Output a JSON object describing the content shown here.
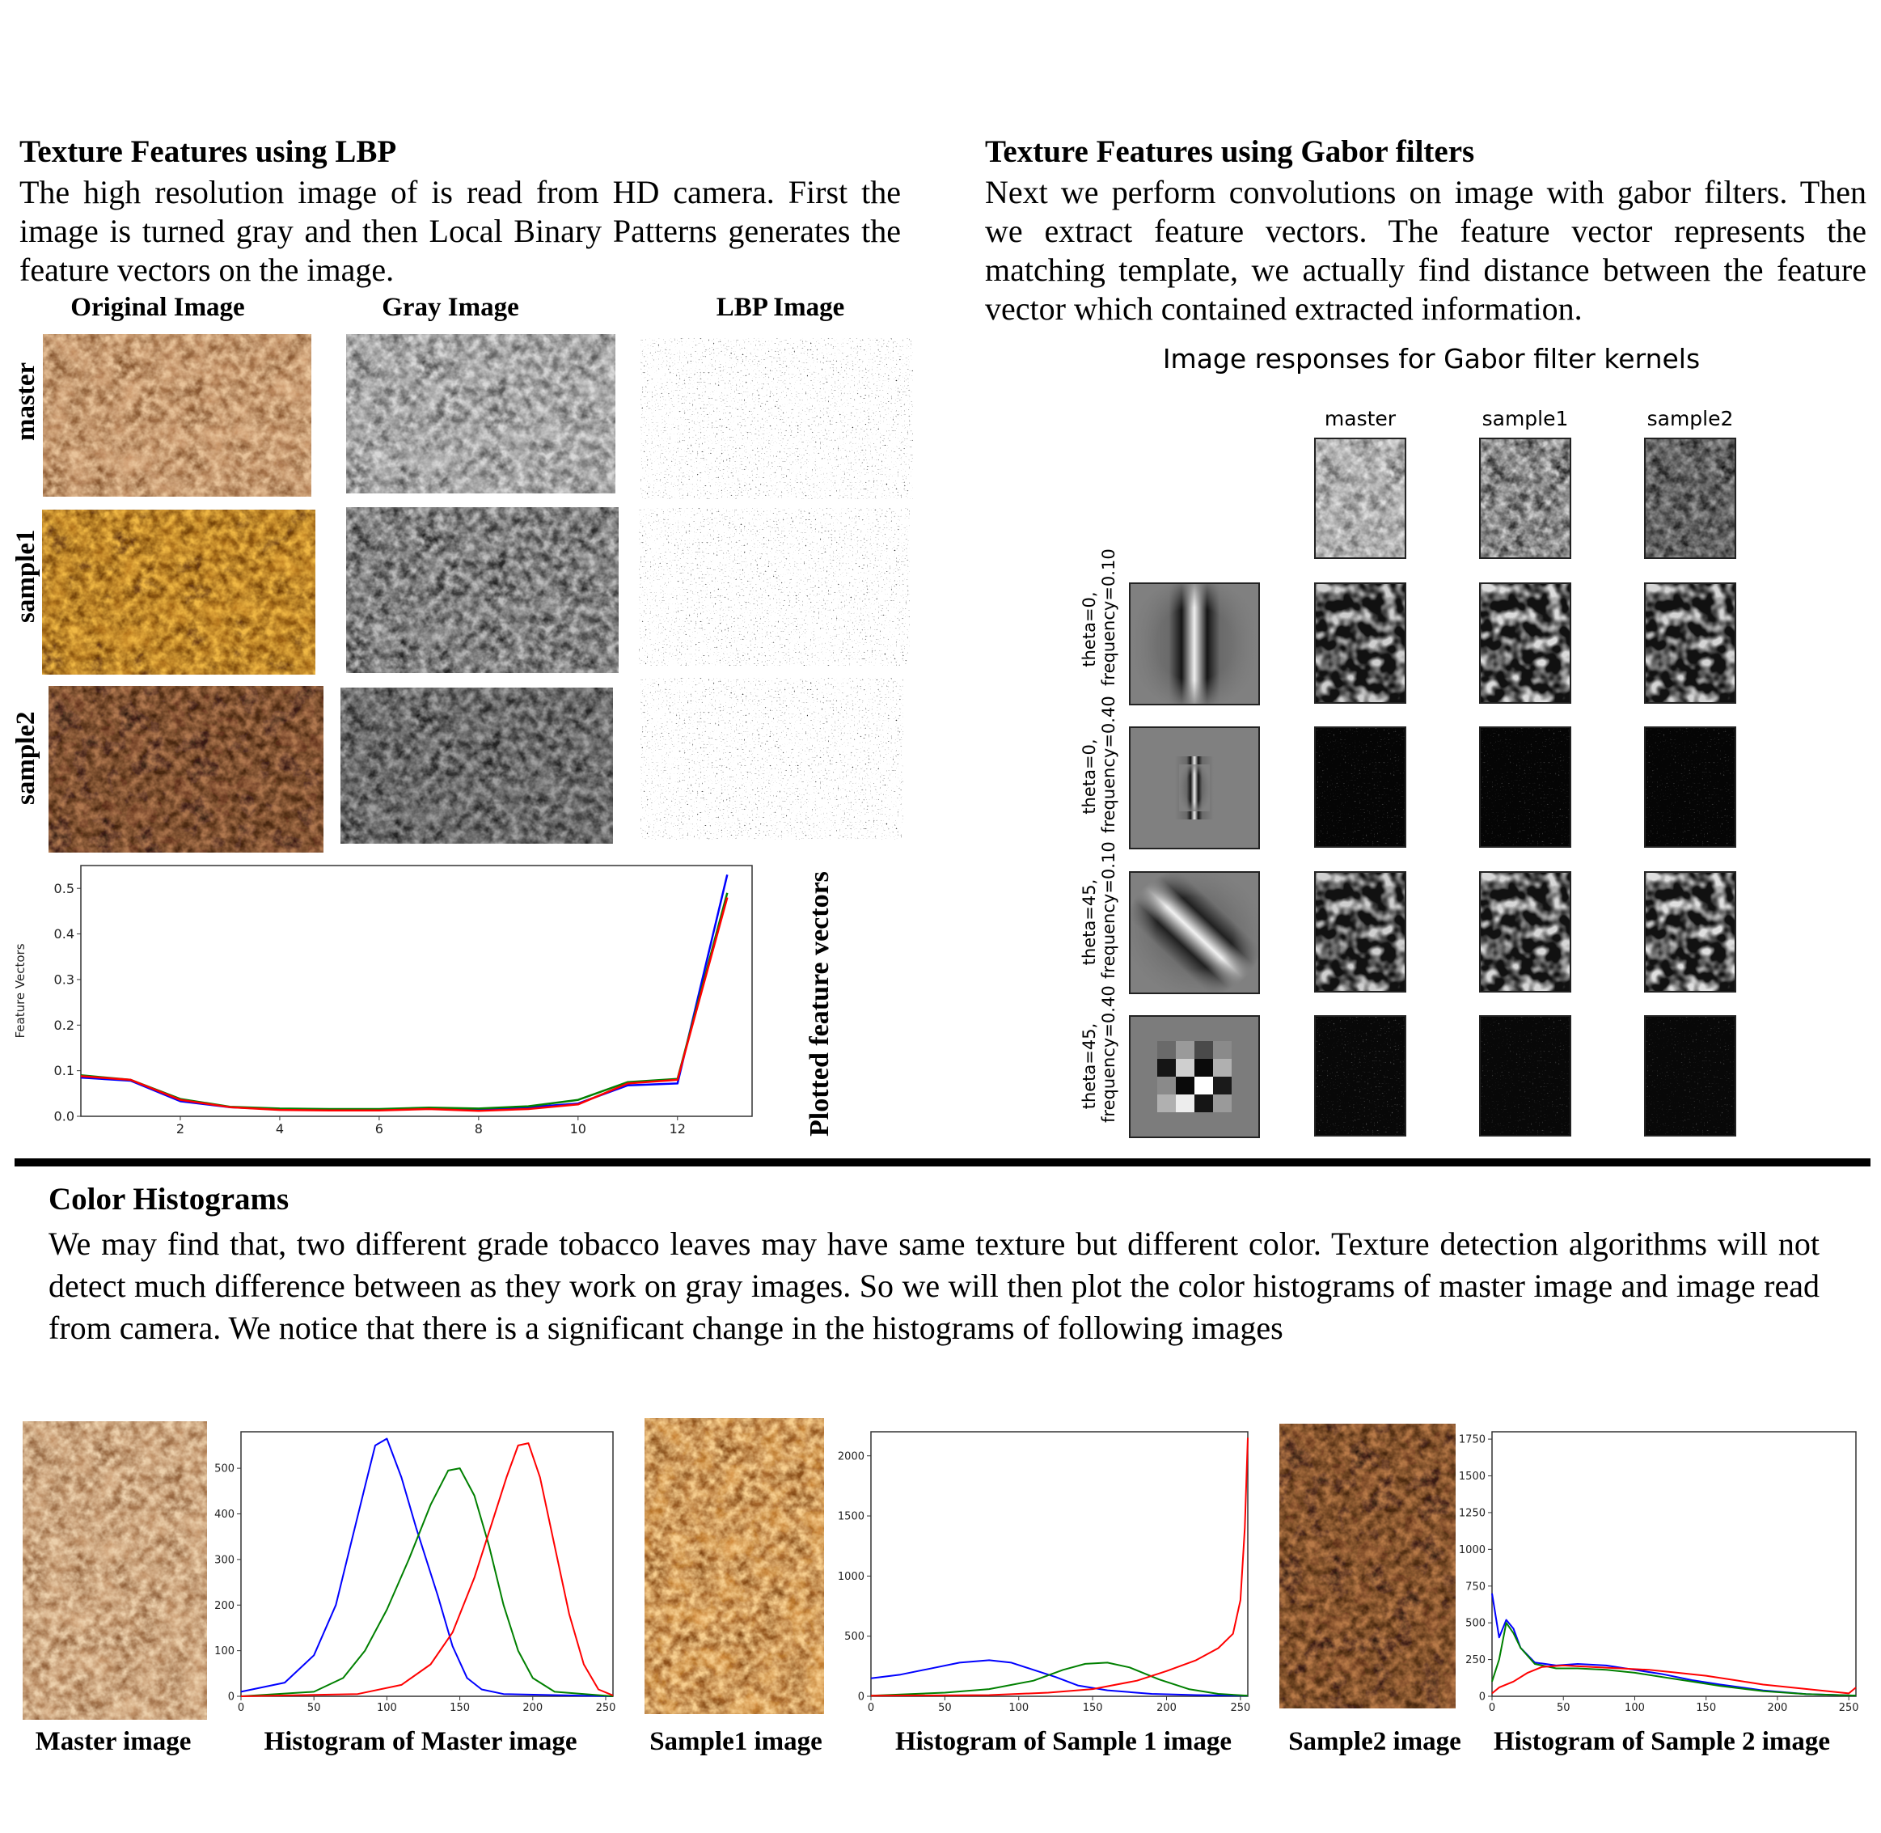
{
  "lbp_section": {
    "title": "Texture Features using LBP",
    "text": "The high resolution image of is read from HD camera. First the image is turned gray and then Local Binary Patterns generates the feature vectors on the image.",
    "columns": [
      "Original Image",
      "Gray Image",
      "LBP Image"
    ],
    "rows": [
      "master",
      "sample1",
      "sample2"
    ],
    "plot_caption": "Plotted feature vectors"
  },
  "gabor_section": {
    "title": "Texture Features using Gabor filters",
    "text": "Next we perform convolutions on image with gabor filters. Then we extract feature vectors. The feature vector represents the matching template, we actually find distance between the feature vector which contained extracted information.",
    "figure_title": "Image responses for Gabor filter kernels",
    "columns": [
      "master",
      "sample1",
      "sample2"
    ],
    "rows": [
      {
        "l1": "theta=0,",
        "l2": "frequency=0.10"
      },
      {
        "l1": "theta=0,",
        "l2": "frequency=0.40"
      },
      {
        "l1": "theta=45,",
        "l2": "frequency=0.10"
      },
      {
        "l1": "theta=45,",
        "l2": "frequency=0.40"
      }
    ]
  },
  "color_section": {
    "title": "Color Histograms",
    "text": "We may find that, two different grade tobacco leaves may have same texture but different color. Texture detection algorithms will not detect much difference between as they work on gray images. So we will then plot the color histograms of master image and image read from camera. We notice that there is a significant change in the histograms of following images",
    "captions": [
      "Master image",
      "Histogram of Master image",
      "Sample1 image",
      "Histogram of Sample 1 image",
      "Sample2 image",
      "Histogram of Sample 2 image"
    ]
  },
  "colors": {
    "blue": "#0000ff",
    "green": "#008000",
    "red": "#ff0000"
  },
  "chart_data": [
    {
      "type": "line",
      "ylabel": "Feature Vectors",
      "xlim": [
        0,
        13.5
      ],
      "ylim": [
        0,
        0.55
      ],
      "xticks": [
        2,
        4,
        6,
        8,
        10,
        12
      ],
      "yticks": [
        0.0,
        0.1,
        0.2,
        0.3,
        0.4,
        0.5
      ],
      "x": [
        0,
        1,
        2,
        3,
        4,
        5,
        6,
        7,
        8,
        9,
        10,
        11,
        12,
        13
      ],
      "series": [
        {
          "color": "blue",
          "values": [
            0.085,
            0.078,
            0.033,
            0.02,
            0.015,
            0.015,
            0.014,
            0.018,
            0.015,
            0.02,
            0.028,
            0.068,
            0.072,
            0.53
          ]
        },
        {
          "color": "green",
          "values": [
            0.09,
            0.08,
            0.038,
            0.021,
            0.017,
            0.016,
            0.016,
            0.019,
            0.017,
            0.022,
            0.036,
            0.075,
            0.082,
            0.49
          ]
        },
        {
          "color": "red",
          "values": [
            0.088,
            0.08,
            0.036,
            0.02,
            0.014,
            0.013,
            0.013,
            0.016,
            0.012,
            0.016,
            0.026,
            0.072,
            0.08,
            0.48
          ]
        }
      ]
    },
    {
      "type": "line",
      "title": "Histogram of Master image",
      "xlim": [
        0,
        255
      ],
      "ylim": [
        0,
        580
      ],
      "xticks": [
        0,
        50,
        100,
        150,
        200,
        250
      ],
      "yticks": [
        0,
        100,
        200,
        300,
        400,
        500
      ],
      "series": [
        {
          "color": "blue",
          "points": [
            [
              0,
              10
            ],
            [
              30,
              30
            ],
            [
              50,
              90
            ],
            [
              65,
              200
            ],
            [
              75,
              330
            ],
            [
              85,
              460
            ],
            [
              92,
              550
            ],
            [
              100,
              565
            ],
            [
              110,
              480
            ],
            [
              120,
              370
            ],
            [
              135,
              220
            ],
            [
              145,
              110
            ],
            [
              155,
              40
            ],
            [
              165,
              15
            ],
            [
              180,
              5
            ],
            [
              255,
              0
            ]
          ]
        },
        {
          "color": "green",
          "points": [
            [
              0,
              0
            ],
            [
              50,
              10
            ],
            [
              70,
              40
            ],
            [
              85,
              100
            ],
            [
              100,
              190
            ],
            [
              115,
              300
            ],
            [
              130,
              420
            ],
            [
              142,
              495
            ],
            [
              150,
              500
            ],
            [
              160,
              440
            ],
            [
              170,
              330
            ],
            [
              180,
              200
            ],
            [
              190,
              100
            ],
            [
              200,
              40
            ],
            [
              215,
              10
            ],
            [
              255,
              0
            ]
          ]
        },
        {
          "color": "red",
          "points": [
            [
              0,
              0
            ],
            [
              80,
              5
            ],
            [
              110,
              25
            ],
            [
              130,
              70
            ],
            [
              145,
              140
            ],
            [
              160,
              260
            ],
            [
              172,
              380
            ],
            [
              182,
              480
            ],
            [
              190,
              550
            ],
            [
              197,
              555
            ],
            [
              205,
              480
            ],
            [
              215,
              330
            ],
            [
              225,
              180
            ],
            [
              235,
              70
            ],
            [
              245,
              15
            ],
            [
              255,
              2
            ]
          ]
        }
      ]
    },
    {
      "type": "line",
      "title": "Histogram of Sample 1 image",
      "xlim": [
        0,
        255
      ],
      "ylim": [
        0,
        2200
      ],
      "xticks": [
        0,
        50,
        100,
        150,
        200,
        250
      ],
      "yticks": [
        0,
        500,
        1000,
        1500,
        2000
      ],
      "series": [
        {
          "color": "blue",
          "points": [
            [
              0,
              150
            ],
            [
              20,
              180
            ],
            [
              40,
              230
            ],
            [
              60,
              280
            ],
            [
              80,
              300
            ],
            [
              95,
              280
            ],
            [
              110,
              220
            ],
            [
              125,
              160
            ],
            [
              140,
              90
            ],
            [
              160,
              50
            ],
            [
              190,
              20
            ],
            [
              220,
              10
            ],
            [
              255,
              5
            ]
          ]
        },
        {
          "color": "green",
          "points": [
            [
              0,
              5
            ],
            [
              50,
              30
            ],
            [
              80,
              60
            ],
            [
              110,
              130
            ],
            [
              130,
              220
            ],
            [
              145,
              270
            ],
            [
              160,
              280
            ],
            [
              175,
              240
            ],
            [
              195,
              140
            ],
            [
              215,
              60
            ],
            [
              235,
              20
            ],
            [
              255,
              5
            ]
          ]
        },
        {
          "color": "red",
          "points": [
            [
              0,
              5
            ],
            [
              80,
              10
            ],
            [
              120,
              30
            ],
            [
              150,
              60
            ],
            [
              180,
              130
            ],
            [
              200,
              210
            ],
            [
              220,
              300
            ],
            [
              235,
              400
            ],
            [
              245,
              520
            ],
            [
              250,
              800
            ],
            [
              253,
              1400
            ],
            [
              255,
              2150
            ]
          ]
        }
      ]
    },
    {
      "type": "line",
      "title": "Histogram of Sample 2 image",
      "xlim": [
        0,
        255
      ],
      "ylim": [
        0,
        1800
      ],
      "xticks": [
        0,
        50,
        100,
        150,
        200,
        250
      ],
      "yticks": [
        0,
        250,
        500,
        750,
        1000,
        1250,
        1500,
        1750
      ],
      "series": [
        {
          "color": "blue",
          "points": [
            [
              0,
              700
            ],
            [
              5,
              400
            ],
            [
              10,
              520
            ],
            [
              15,
              460
            ],
            [
              20,
              330
            ],
            [
              30,
              230
            ],
            [
              45,
              210
            ],
            [
              60,
              220
            ],
            [
              80,
              210
            ],
            [
              100,
              180
            ],
            [
              120,
              150
            ],
            [
              140,
              110
            ],
            [
              160,
              80
            ],
            [
              190,
              40
            ],
            [
              220,
              15
            ],
            [
              255,
              5
            ]
          ]
        },
        {
          "color": "green",
          "points": [
            [
              0,
              100
            ],
            [
              5,
              250
            ],
            [
              10,
              500
            ],
            [
              15,
              430
            ],
            [
              20,
              330
            ],
            [
              30,
              220
            ],
            [
              45,
              190
            ],
            [
              60,
              190
            ],
            [
              80,
              180
            ],
            [
              100,
              160
            ],
            [
              120,
              130
            ],
            [
              140,
              100
            ],
            [
              160,
              70
            ],
            [
              190,
              35
            ],
            [
              220,
              15
            ],
            [
              255,
              5
            ]
          ]
        },
        {
          "color": "red",
          "points": [
            [
              0,
              20
            ],
            [
              5,
              60
            ],
            [
              15,
              100
            ],
            [
              25,
              160
            ],
            [
              35,
              200
            ],
            [
              50,
              210
            ],
            [
              70,
              200
            ],
            [
              90,
              190
            ],
            [
              110,
              180
            ],
            [
              130,
              160
            ],
            [
              150,
              140
            ],
            [
              170,
              110
            ],
            [
              190,
              80
            ],
            [
              210,
              60
            ],
            [
              230,
              40
            ],
            [
              250,
              20
            ],
            [
              255,
              60
            ]
          ]
        }
      ]
    }
  ]
}
